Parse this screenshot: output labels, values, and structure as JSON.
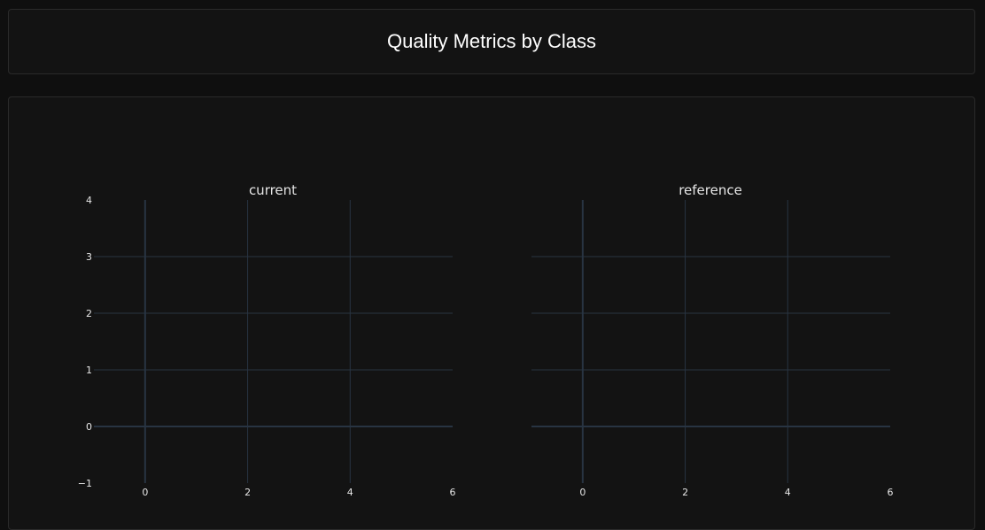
{
  "header": {
    "title": "Quality Metrics by Class"
  },
  "colors": {
    "background": "#0f0f0f",
    "card": "#131313",
    "grid": "#283442",
    "zeroline": "#283442",
    "text": "#e6e6e6"
  },
  "chart_data": [
    {
      "type": "scatter",
      "title": "current",
      "series": [],
      "xlim": [
        -1,
        6
      ],
      "ylim": [
        -1,
        4
      ],
      "x_ticks": [
        "0",
        "2",
        "4",
        "6"
      ],
      "y_ticks": [
        "−1",
        "0",
        "1",
        "2",
        "3",
        "4"
      ],
      "grid": true,
      "xlabel": "",
      "ylabel": ""
    },
    {
      "type": "scatter",
      "title": "reference",
      "series": [],
      "xlim": [
        -1,
        6
      ],
      "ylim": [
        -1,
        4
      ],
      "x_ticks": [
        "0",
        "2",
        "4",
        "6"
      ],
      "grid": true,
      "xlabel": "",
      "ylabel": ""
    }
  ]
}
